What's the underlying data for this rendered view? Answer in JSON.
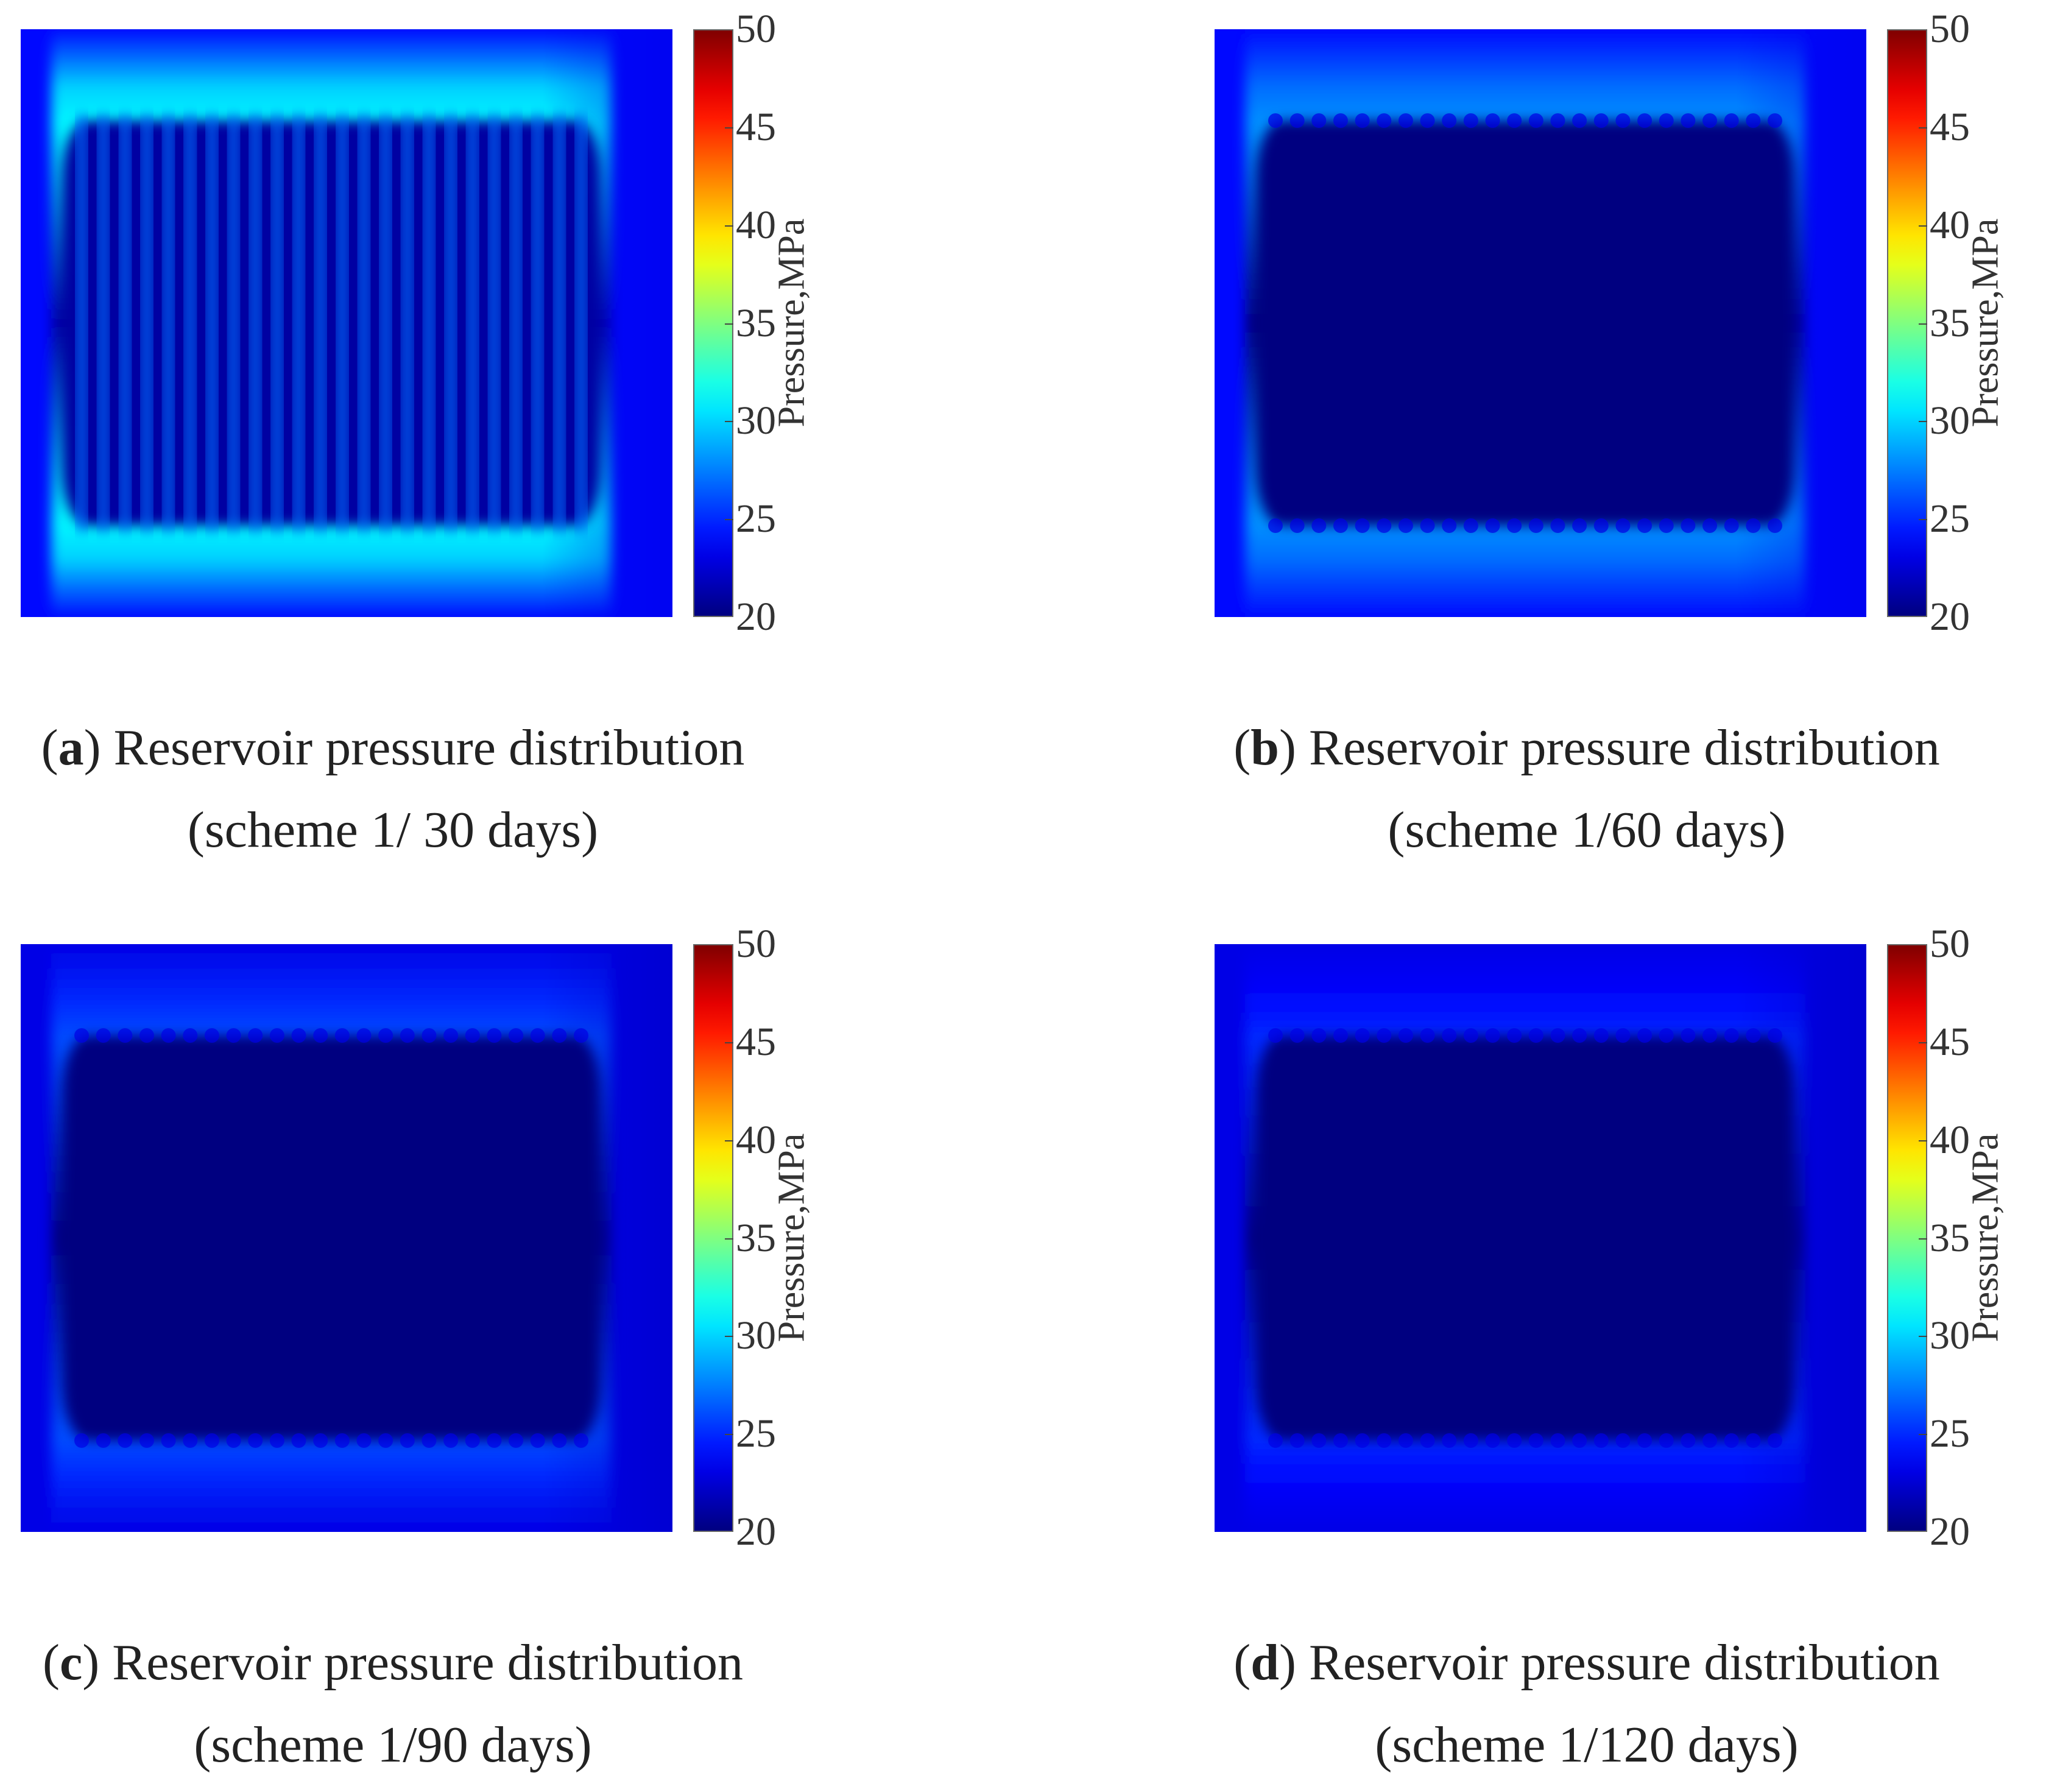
{
  "colorbar": {
    "label": "Pressure,MPa",
    "min": 20,
    "max": 50,
    "ticks": [
      "50",
      "45",
      "40",
      "35",
      "30",
      "25",
      "20"
    ],
    "colormap": "jet"
  },
  "panels": [
    {
      "id": "a",
      "label": "a",
      "caption_line1": " Reservoir pressure distribution",
      "caption_line2": "(scheme 1/ 30 days)",
      "scheme": 1,
      "days": 30
    },
    {
      "id": "b",
      "label": "b",
      "caption_line1": " Reservoir pressure distribution",
      "caption_line2": "(scheme 1/60 days)",
      "scheme": 1,
      "days": 60
    },
    {
      "id": "c",
      "label": "c",
      "caption_line1": " Reservoir pressure distribution",
      "caption_line2": "(scheme 1/90 days)",
      "scheme": 1,
      "days": 90
    },
    {
      "id": "d",
      "label": "d",
      "caption_line1": " Reservoir pressure distribution",
      "caption_line2": "(scheme 1/120 days)",
      "scheme": 1,
      "days": 120
    }
  ],
  "chart_data": [
    {
      "type": "heatmap",
      "title": "(a) Reservoir pressure distribution (scheme 1/ 30 days)",
      "colorbar_label": "Pressure,MPa",
      "zlim": [
        20,
        50
      ],
      "fracture_count": 24,
      "depleted_core_pressure": 21,
      "fracture_zone_pressure": 31,
      "boundary_pressure": 24,
      "pattern": "striped"
    },
    {
      "type": "heatmap",
      "title": "(b) Reservoir pressure distribution (scheme 1/60 days)",
      "colorbar_label": "Pressure,MPa",
      "zlim": [
        20,
        50
      ],
      "fracture_count": 24,
      "depleted_core_pressure": 20,
      "fracture_zone_pressure": 28,
      "boundary_pressure": 24,
      "pattern": "depleted"
    },
    {
      "type": "heatmap",
      "title": "(c) Reservoir pressure distribution (scheme 1/90 days)",
      "colorbar_label": "Pressure,MPa",
      "zlim": [
        20,
        50
      ],
      "fracture_count": 24,
      "depleted_core_pressure": 20,
      "fracture_zone_pressure": 26,
      "boundary_pressure": 23,
      "pattern": "depleted"
    },
    {
      "type": "heatmap",
      "title": "(d) Reservoir pressure distribution (scheme 1/120 days)",
      "colorbar_label": "Pressure,MPa",
      "zlim": [
        20,
        50
      ],
      "fracture_count": 24,
      "depleted_core_pressure": 20,
      "fracture_zone_pressure": 25,
      "boundary_pressure": 23,
      "pattern": "depleted"
    }
  ]
}
